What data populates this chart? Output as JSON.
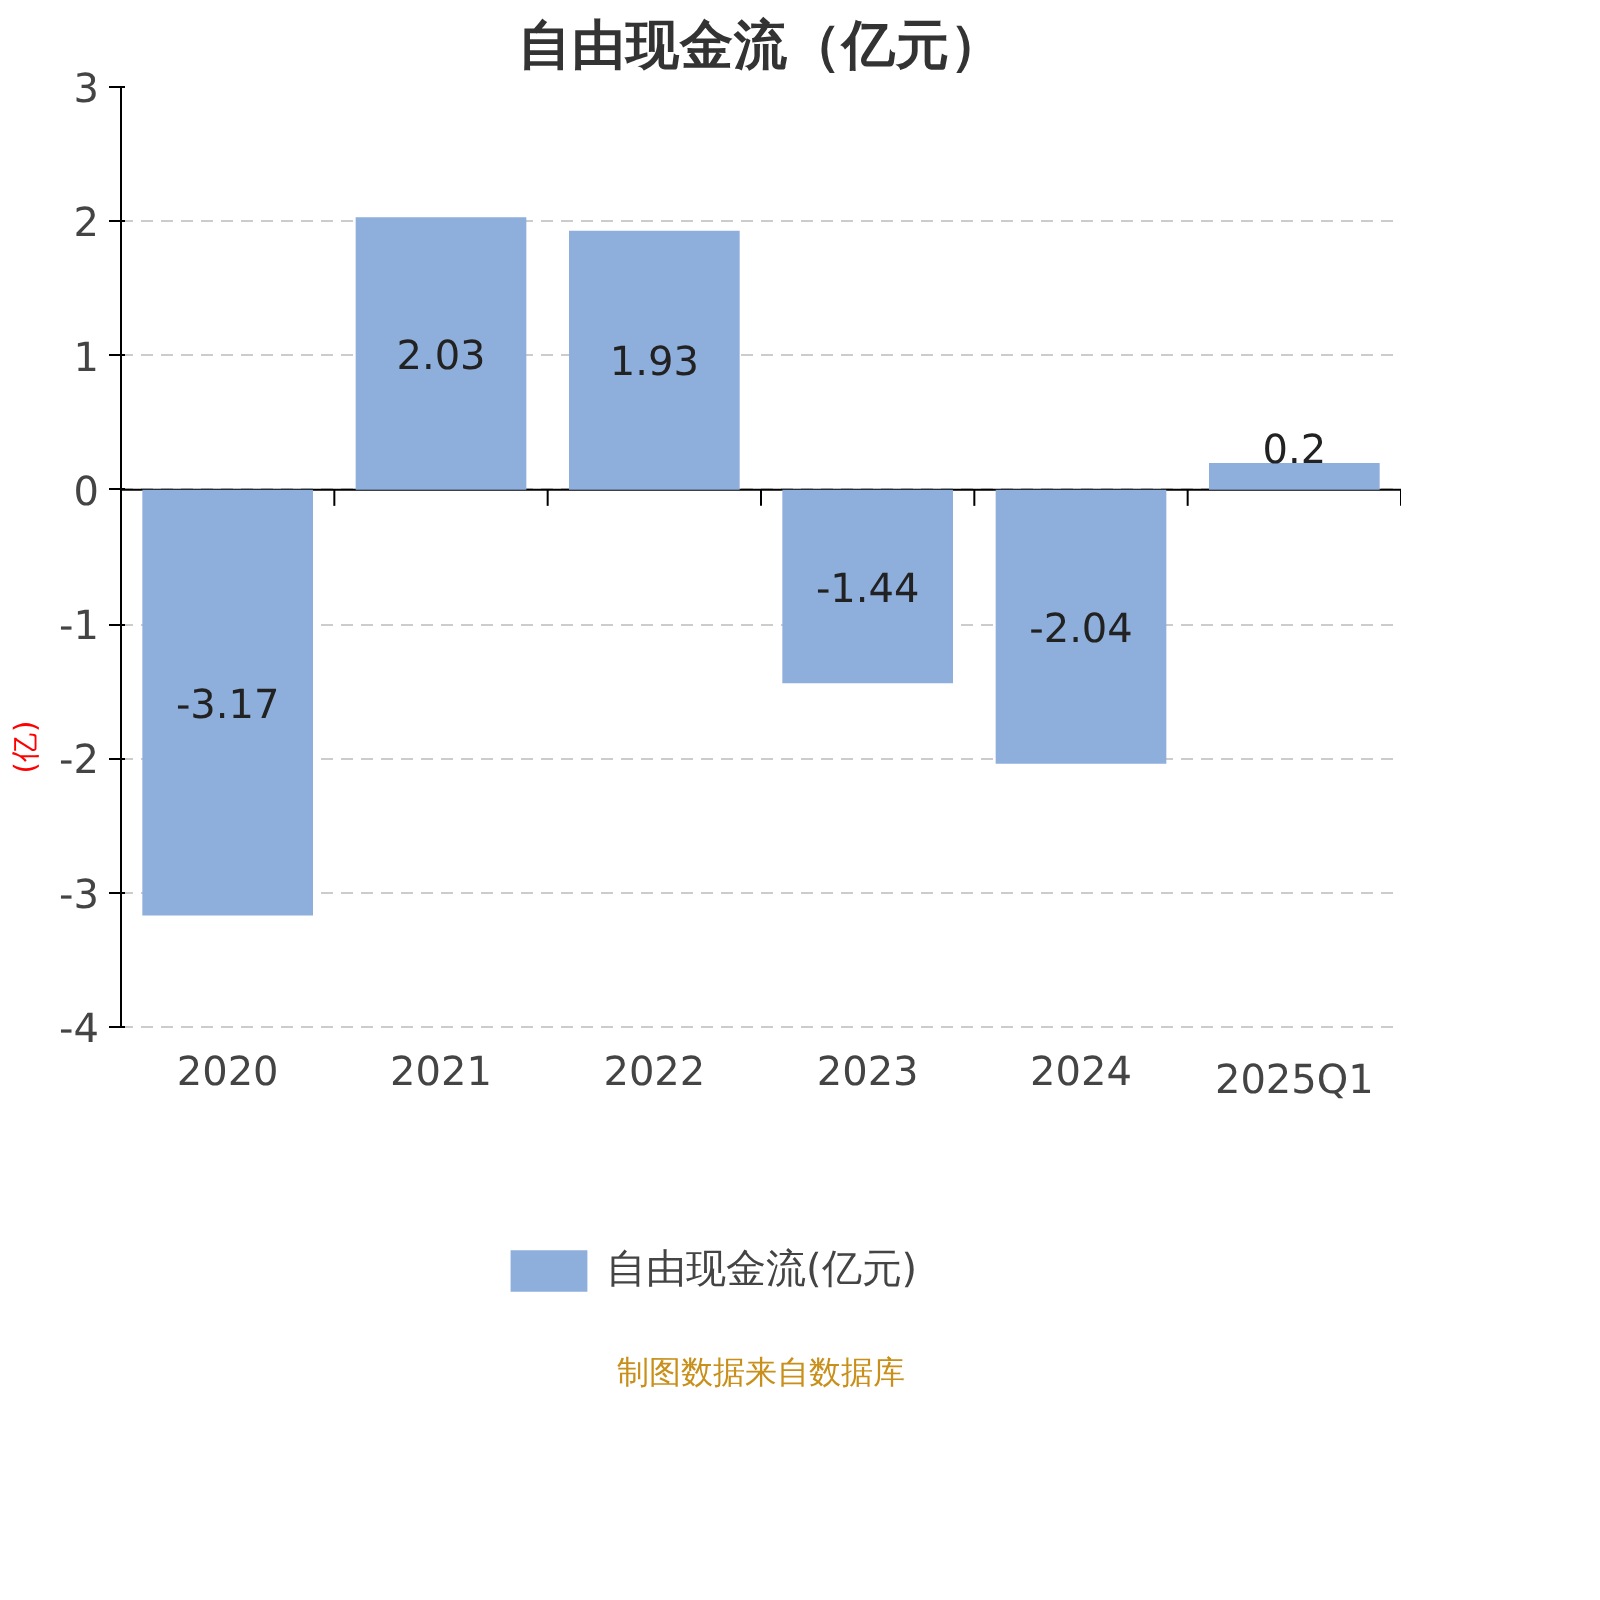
{
  "chart_data": {
    "type": "bar",
    "title": "自由现金流（亿元）",
    "ylabel": "(亿)",
    "categories": [
      "2020",
      "2021",
      "2022",
      "2023",
      "2024",
      "2025Q1"
    ],
    "series": [
      {
        "name": "自由现金流(亿元)",
        "color": "#8eaedb",
        "values": [
          -3.17,
          2.03,
          1.93,
          -1.44,
          -2.04,
          0.2
        ]
      }
    ],
    "ylim": [
      -4,
      3
    ],
    "yticks": [
      -4,
      -3,
      -2,
      -1,
      0,
      1,
      2,
      3
    ],
    "grid": "y",
    "legend": "bottom",
    "data_labels": true,
    "annotations": [
      "制图数据来自数据库"
    ]
  }
}
